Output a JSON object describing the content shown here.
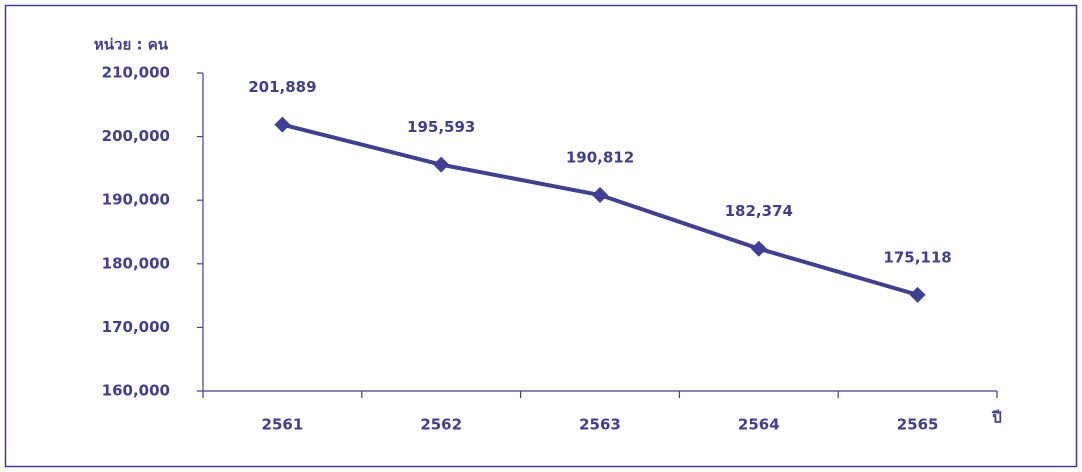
{
  "chart_data": {
    "type": "line",
    "y_axis_label": "หน่วย : คน",
    "x_axis_label": "ปี",
    "categories": [
      "2561",
      "2562",
      "2563",
      "2564",
      "2565"
    ],
    "values": [
      201889,
      195593,
      190812,
      182374,
      175118
    ],
    "value_labels": [
      "201,889",
      "195,593",
      "190,812",
      "182,374",
      "175,118"
    ],
    "color": "#3f3f96",
    "ylim": [
      160000,
      210000
    ],
    "yticks": [
      {
        "value": 160000,
        "label": "160,000"
      },
      {
        "value": 170000,
        "label": "170,000"
      },
      {
        "value": 180000,
        "label": "180,000"
      },
      {
        "value": 190000,
        "label": "190,000"
      },
      {
        "value": 200000,
        "label": "200,000"
      },
      {
        "value": 210000,
        "label": "210,000"
      }
    ],
    "grid": false
  }
}
